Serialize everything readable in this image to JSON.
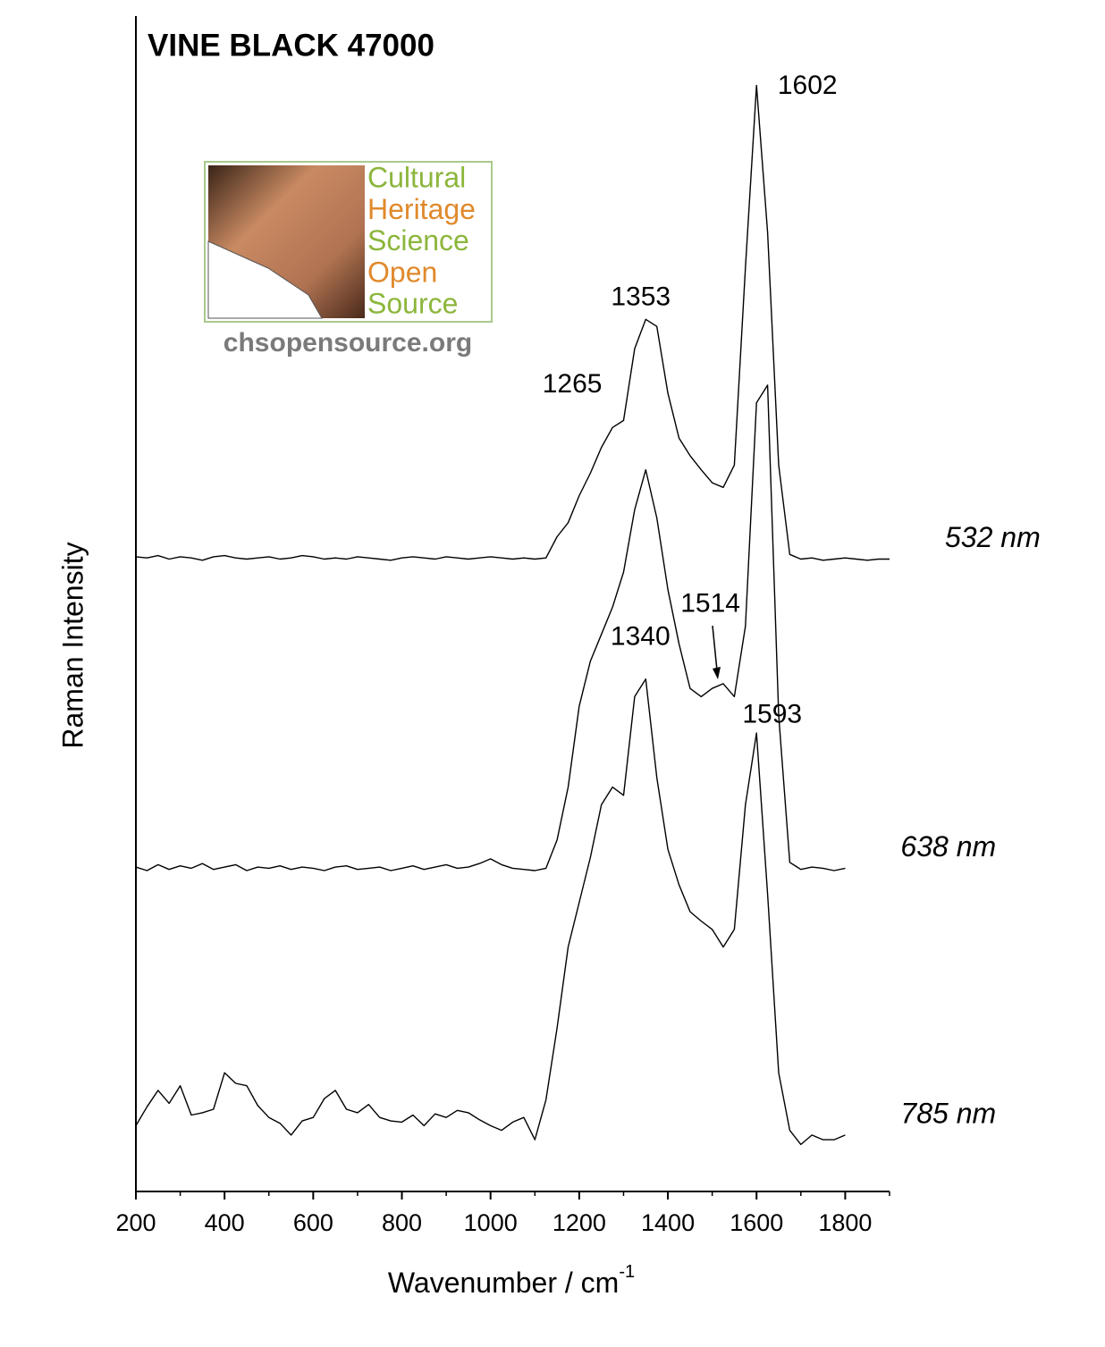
{
  "chart_data": {
    "type": "line",
    "title": "VINE BLACK 47000",
    "xlabel": {
      "text": "Wavenumber / cm",
      "sup": "-1"
    },
    "ylabel": "Raman Intensity",
    "xlim": [
      200,
      1900
    ],
    "ylim": [
      0,
      100
    ],
    "xticks": [
      200,
      400,
      600,
      800,
      1000,
      1200,
      1400,
      1600,
      1800
    ],
    "xminorticks": [
      300,
      500,
      700,
      900,
      1100,
      1300,
      1500,
      1700,
      1900
    ],
    "x": [
      200,
      225,
      250,
      275,
      300,
      325,
      350,
      375,
      400,
      425,
      450,
      475,
      500,
      525,
      550,
      575,
      600,
      625,
      650,
      675,
      700,
      725,
      750,
      775,
      800,
      825,
      850,
      875,
      900,
      925,
      950,
      975,
      1000,
      1025,
      1050,
      1075,
      1100,
      1125,
      1150,
      1175,
      1200,
      1225,
      1250,
      1275,
      1300,
      1325,
      1350,
      1375,
      1400,
      1425,
      1450,
      1475,
      1500,
      1525,
      1550,
      1575,
      1600,
      1625,
      1650,
      1675,
      1700,
      1725,
      1750,
      1775,
      1800,
      1825,
      1850,
      1875,
      1900
    ],
    "series": [
      {
        "name": "532 nm",
        "color": "#000000",
        "values": [
          54.0,
          53.9,
          54.1,
          53.8,
          54.0,
          53.9,
          53.7,
          54.0,
          54.1,
          53.9,
          53.8,
          53.9,
          54.0,
          53.8,
          53.9,
          54.1,
          54.0,
          53.8,
          53.9,
          53.8,
          54.0,
          53.9,
          53.8,
          53.7,
          53.9,
          54.0,
          53.9,
          53.8,
          54.0,
          53.9,
          53.8,
          53.9,
          54.0,
          53.9,
          53.8,
          53.9,
          53.8,
          53.9,
          55.7,
          56.9,
          59.2,
          61.1,
          63.3,
          65.0,
          65.6,
          71.7,
          74.2,
          73.6,
          67.9,
          64.1,
          62.6,
          61.4,
          60.3,
          59.9,
          61.8,
          78.6,
          94.1,
          81.6,
          61.8,
          54.2,
          53.8,
          53.9,
          53.7,
          53.8,
          53.9,
          53.8,
          53.7,
          53.8,
          53.8
        ]
      },
      {
        "name": "638 nm",
        "color": "#000000",
        "values": [
          27.6,
          27.3,
          27.8,
          27.4,
          27.7,
          27.5,
          27.9,
          27.4,
          27.6,
          27.8,
          27.3,
          27.6,
          27.5,
          27.7,
          27.4,
          27.6,
          27.5,
          27.3,
          27.6,
          27.7,
          27.4,
          27.5,
          27.6,
          27.3,
          27.5,
          27.7,
          27.4,
          27.6,
          27.8,
          27.5,
          27.6,
          27.9,
          28.3,
          27.8,
          27.5,
          27.4,
          27.3,
          27.5,
          29.9,
          34.4,
          41.3,
          45.1,
          47.4,
          49.7,
          52.7,
          58.0,
          61.4,
          57.3,
          51.2,
          46.6,
          42.8,
          42.1,
          42.8,
          43.2,
          42.1,
          48.1,
          67.1,
          68.6,
          40.5,
          28.0,
          27.4,
          27.6,
          27.5,
          27.3,
          27.5,
          null,
          null,
          null,
          null
        ]
      },
      {
        "name": "785 nm",
        "color": "#000000",
        "values": [
          5.6,
          7.2,
          8.6,
          7.5,
          9.0,
          6.5,
          6.7,
          7.0,
          10.1,
          9.2,
          9.0,
          7.3,
          6.3,
          5.8,
          4.8,
          6.0,
          6.3,
          7.9,
          8.6,
          7.0,
          6.7,
          7.4,
          6.3,
          6.0,
          5.9,
          6.5,
          5.6,
          6.6,
          6.3,
          6.9,
          6.7,
          6.1,
          5.6,
          5.2,
          5.9,
          6.3,
          4.4,
          7.8,
          13.9,
          20.8,
          24.6,
          28.4,
          32.9,
          34.4,
          33.7,
          42.1,
          43.6,
          35.2,
          29.1,
          26.1,
          23.8,
          23.0,
          22.3,
          20.8,
          22.3,
          32.9,
          39.0,
          25.3,
          10.1,
          5.2,
          4.0,
          4.8,
          4.4,
          4.4,
          4.8,
          null,
          null,
          null,
          null
        ]
      }
    ],
    "annotations": [
      {
        "x": 1602,
        "y": 94.0
      },
      {
        "x": 1353,
        "y": 76.0
      },
      {
        "x": 1265,
        "y": 68.6
      },
      {
        "x": 1514,
        "y": 49.9
      },
      {
        "x": 1340,
        "y": 47.1
      },
      {
        "x": 1593,
        "y": 40.5
      }
    ],
    "logo": {
      "lines": [
        "Cultural",
        "Heritage",
        "Science",
        "Open",
        "Source"
      ],
      "colors": [
        "#8cb63c",
        "#e0892c",
        "#8cb63c",
        "#e0892c",
        "#8cb63c"
      ],
      "url": "chsopensource.org"
    }
  }
}
